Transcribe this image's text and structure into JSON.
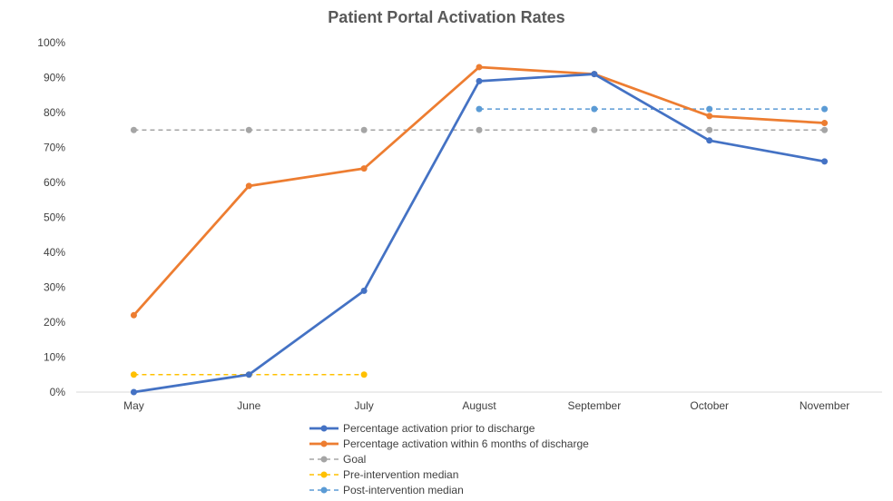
{
  "chart_data": {
    "type": "line",
    "title": "Patient Portal Activation Rates",
    "xlabel": "",
    "ylabel": "",
    "categories": [
      "May",
      "June",
      "July",
      "August",
      "September",
      "October",
      "November"
    ],
    "ylim": [
      0,
      100
    ],
    "yticks": [
      "0%",
      "10%",
      "20%",
      "30%",
      "40%",
      "50%",
      "60%",
      "70%",
      "80%",
      "90%",
      "100%"
    ],
    "grid": false,
    "legend_position": "bottom",
    "series": [
      {
        "name": "Percentage activation prior to discharge",
        "color": "#4472C4",
        "style": "solid",
        "values": [
          0,
          5,
          29,
          89,
          91,
          72,
          66
        ]
      },
      {
        "name": "Percentage activation within 6 months of discharge",
        "color": "#ED7D31",
        "style": "solid",
        "values": [
          22,
          59,
          64,
          93,
          91,
          79,
          77
        ]
      },
      {
        "name": "Goal",
        "color": "#A5A5A5",
        "style": "dashed",
        "values": [
          75,
          75,
          75,
          75,
          75,
          75,
          75
        ]
      },
      {
        "name": "Pre-intervention median",
        "color": "#FFC000",
        "style": "dashed",
        "values": [
          5,
          5,
          5,
          null,
          null,
          null,
          null
        ]
      },
      {
        "name": "Post-intervention median",
        "color": "#5B9BD5",
        "style": "dashed",
        "values": [
          null,
          null,
          null,
          81,
          81,
          81,
          81
        ]
      }
    ]
  }
}
